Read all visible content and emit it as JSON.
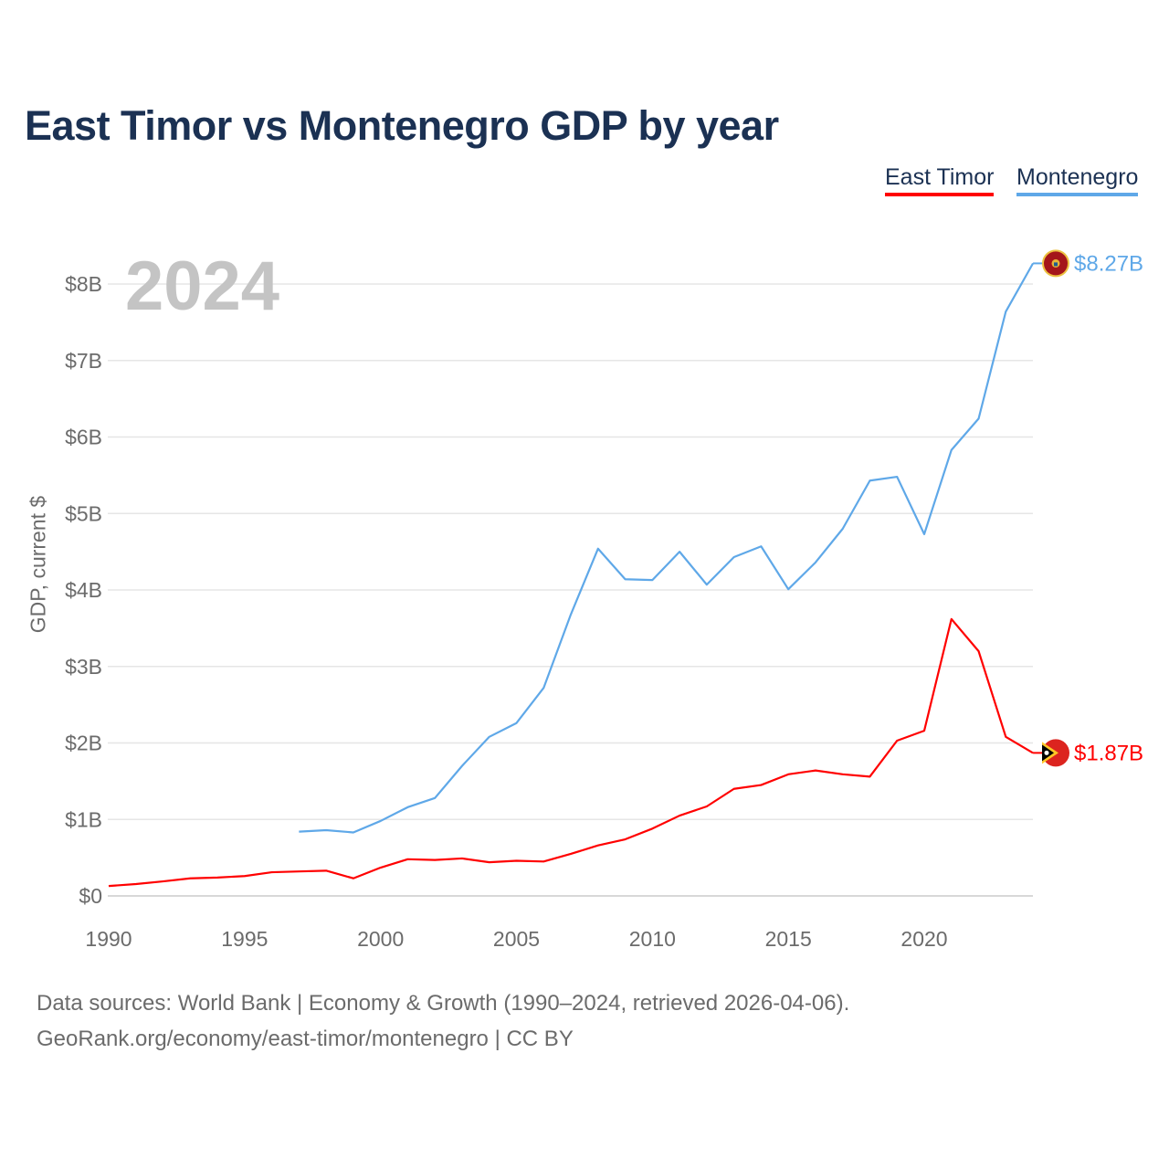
{
  "chart_data": {
    "type": "line",
    "title": "East Timor vs Montenegro GDP by year",
    "ylabel": "GDP, current $",
    "xlabel": "",
    "current_year": "2024",
    "xlim": [
      1990,
      2024
    ],
    "ylim": [
      0,
      8.27
    ],
    "xticks": [
      "1990",
      "1995",
      "2000",
      "2005",
      "2010",
      "2015",
      "2020"
    ],
    "yticks": [
      "$0",
      "$1B",
      "$2B",
      "$3B",
      "$4B",
      "$5B",
      "$6B",
      "$7B",
      "$8B"
    ],
    "legend_position": "top-right",
    "series": [
      {
        "name": "East Timor",
        "color": "#ff0000",
        "end_label": "$1.87B",
        "x": [
          1990,
          1991,
          1992,
          1993,
          1994,
          1995,
          1996,
          1997,
          1998,
          1999,
          2000,
          2001,
          2002,
          2003,
          2004,
          2005,
          2006,
          2007,
          2008,
          2009,
          2010,
          2011,
          2012,
          2013,
          2014,
          2015,
          2016,
          2017,
          2018,
          2019,
          2020,
          2021,
          2022,
          2023,
          2024
        ],
        "values": [
          0.13,
          0.155,
          0.19,
          0.23,
          0.24,
          0.26,
          0.31,
          0.32,
          0.33,
          0.23,
          0.37,
          0.48,
          0.47,
          0.49,
          0.44,
          0.46,
          0.45,
          0.55,
          0.66,
          0.74,
          0.88,
          1.05,
          1.17,
          1.4,
          1.45,
          1.59,
          1.64,
          1.59,
          1.56,
          2.03,
          2.16,
          3.62,
          3.2,
          2.08,
          1.87
        ]
      },
      {
        "name": "Montenegro",
        "color": "#5fa8e8",
        "end_label": "$8.27B",
        "x": [
          1997,
          1998,
          1999,
          2000,
          2001,
          2002,
          2003,
          2004,
          2005,
          2006,
          2007,
          2008,
          2009,
          2010,
          2011,
          2012,
          2013,
          2014,
          2015,
          2016,
          2017,
          2018,
          2019,
          2020,
          2021,
          2022,
          2023,
          2024
        ],
        "values": [
          0.84,
          0.86,
          0.83,
          0.98,
          1.16,
          1.28,
          1.7,
          2.08,
          2.26,
          2.72,
          3.68,
          4.54,
          4.14,
          4.13,
          4.5,
          4.07,
          4.43,
          4.57,
          4.01,
          4.36,
          4.8,
          5.43,
          5.48,
          4.73,
          5.83,
          6.24,
          7.64,
          8.27
        ]
      }
    ]
  },
  "footer": {
    "line1": "Data sources: World Bank | Economy & Growth (1990–2024, retrieved 2026-04-06).",
    "line2": "GeoRank.org/economy/east-timor/montenegro | CC BY"
  }
}
